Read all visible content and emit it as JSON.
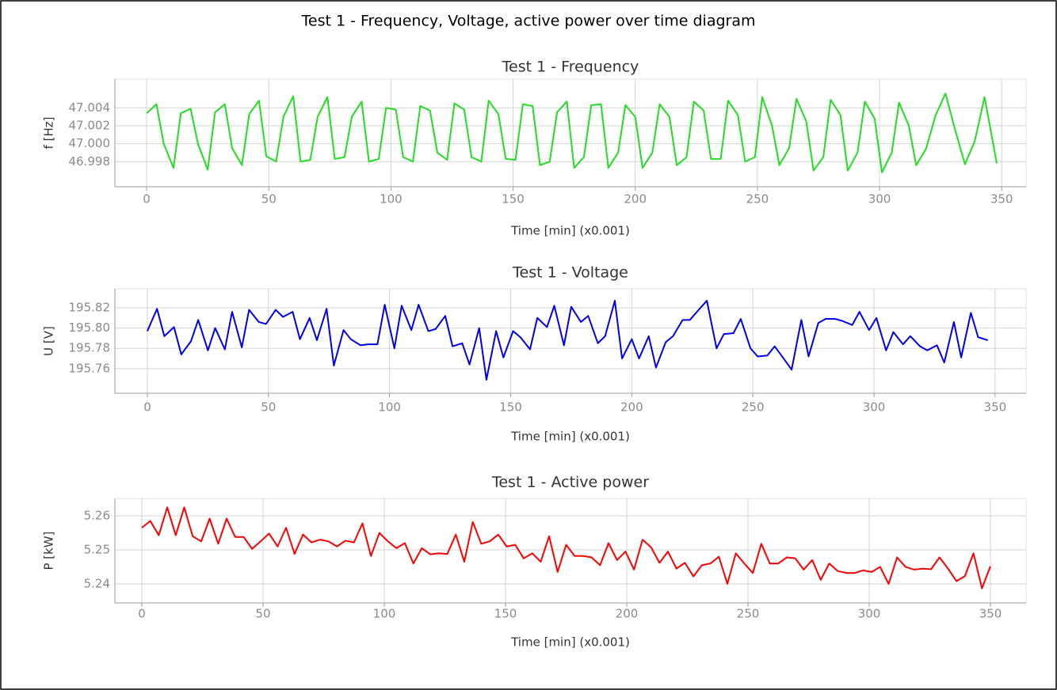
{
  "title": "Test 1 - Frequency, Voltage, active power over time diagram",
  "chart_data": [
    {
      "type": "line",
      "title": "Test 1 - Frequency",
      "x_label": "Time [min] (x0.001)",
      "y_label": "f [Hz]",
      "color": "#22dd22",
      "xlim": [
        -13,
        360
      ],
      "xticks": [
        0,
        50,
        100,
        150,
        200,
        250,
        300,
        350
      ],
      "ylim": [
        46.9952,
        47.0072
      ],
      "yticks": [
        46.998,
        {
          "value": 47,
          "label": "47.000"
        },
        47.002,
        47.004
      ],
      "grid": true,
      "x": [
        0,
        4,
        7,
        11,
        14,
        18,
        21,
        25,
        28,
        32,
        35,
        39,
        42,
        46,
        49,
        53,
        56,
        60,
        63,
        67,
        70,
        74,
        77,
        81,
        84,
        88,
        91,
        95,
        98,
        102,
        105,
        109,
        112,
        116,
        119,
        123,
        126,
        130,
        133,
        137,
        140,
        144,
        147,
        151,
        154,
        158,
        161,
        165,
        168,
        172,
        175,
        179,
        182,
        186,
        189,
        193,
        196,
        200,
        203,
        207,
        210,
        214,
        217,
        221,
        224,
        228,
        231,
        235,
        238,
        242,
        245,
        249,
        252,
        256,
        259,
        263,
        266,
        270,
        273,
        277,
        280,
        284,
        287,
        291,
        294,
        298,
        301,
        305,
        308,
        312,
        315,
        319,
        323,
        327,
        331,
        335,
        339,
        343,
        348
      ],
      "values": [
        47.0034,
        47.0044,
        47.0,
        46.9973,
        47.0034,
        47.0039,
        47.0,
        46.9971,
        47.0035,
        47.0044,
        46.9995,
        46.9976,
        47.0033,
        47.0048,
        46.9986,
        46.998,
        47.003,
        47.0053,
        46.998,
        46.9982,
        47.003,
        47.0052,
        46.9983,
        46.9985,
        47.003,
        47.0047,
        46.998,
        46.9983,
        47.004,
        47.0038,
        46.9985,
        46.998,
        47.0042,
        47.0037,
        46.999,
        46.9982,
        47.0045,
        47.0038,
        46.9985,
        46.998,
        47.0048,
        47.0033,
        46.9983,
        46.9982,
        47.0044,
        47.0042,
        46.9976,
        46.998,
        47.0035,
        47.0047,
        46.9973,
        46.9985,
        47.0043,
        47.0044,
        46.9973,
        46.999,
        47.0043,
        47.003,
        46.9973,
        46.999,
        47.0044,
        47.003,
        46.9976,
        46.9985,
        47.0047,
        47.0037,
        46.9983,
        46.9983,
        47.0048,
        47.0032,
        46.998,
        46.9985,
        47.0052,
        47.002,
        46.9976,
        46.9995,
        47.005,
        47.0025,
        46.997,
        46.9985,
        47.0049,
        47.0032,
        46.997,
        46.999,
        47.0047,
        47.0028,
        46.9968,
        46.999,
        47.0046,
        47.002,
        46.9976,
        46.9994,
        47.0032,
        47.0056,
        47.0015,
        46.9977,
        47.0003,
        47.0052,
        46.9978
      ]
    },
    {
      "type": "line",
      "title": "Test 1 - Voltage",
      "x_label": "Time [min] (x0.001)",
      "y_label": "U [V]",
      "color": "#0000ee",
      "xlim": [
        -13.4,
        362.8
      ],
      "xticks": [
        0,
        50,
        100,
        150,
        200,
        250,
        300,
        350
      ],
      "ylim": [
        195.7357,
        195.8387
      ],
      "yticks": [
        195.76,
        195.78,
        {
          "value": 195.8,
          "label": "195.80"
        },
        195.82
      ],
      "grid": true,
      "x": [
        0,
        4,
        7,
        11,
        14,
        18,
        21,
        25,
        28,
        32,
        35,
        39,
        42,
        46,
        49,
        53,
        56,
        60,
        63,
        67,
        70,
        74,
        77,
        81,
        84,
        88,
        91,
        95,
        98,
        102,
        105,
        109,
        112,
        116,
        119,
        123,
        126,
        130,
        133,
        137,
        140,
        144,
        147,
        151,
        154,
        158,
        161,
        165,
        168,
        172,
        175,
        179,
        182,
        186,
        189,
        193,
        196,
        200,
        203,
        207,
        210,
        214,
        217,
        221,
        224,
        228,
        231,
        235,
        238,
        242,
        245,
        249,
        252,
        256,
        259,
        263,
        266,
        270,
        273,
        277,
        280,
        284,
        287,
        291,
        294,
        298,
        301,
        305,
        308,
        312,
        315,
        319,
        322,
        326,
        329,
        333,
        336,
        340,
        343,
        347
      ],
      "values": [
        195.797,
        195.819,
        195.792,
        195.801,
        195.774,
        195.787,
        195.808,
        195.778,
        195.8,
        195.779,
        195.816,
        195.781,
        195.818,
        195.806,
        195.804,
        195.818,
        195.811,
        195.816,
        195.789,
        195.81,
        195.788,
        195.819,
        195.763,
        195.798,
        195.789,
        195.783,
        195.784,
        195.784,
        195.823,
        195.78,
        195.822,
        195.798,
        195.823,
        195.797,
        195.799,
        195.812,
        195.782,
        195.785,
        195.764,
        195.8,
        195.749,
        195.797,
        195.771,
        195.797,
        195.791,
        195.779,
        195.81,
        195.801,
        195.822,
        195.783,
        195.821,
        195.806,
        195.812,
        195.785,
        195.792,
        195.827,
        195.77,
        195.789,
        195.77,
        195.792,
        195.761,
        195.786,
        195.792,
        195.808,
        195.808,
        195.819,
        195.827,
        195.78,
        195.794,
        195.795,
        195.809,
        195.78,
        195.772,
        195.773,
        195.782,
        195.769,
        195.759,
        195.808,
        195.772,
        195.805,
        195.809,
        195.809,
        195.807,
        195.803,
        195.816,
        195.798,
        195.81,
        195.778,
        195.796,
        195.784,
        195.792,
        195.782,
        195.778,
        195.783,
        195.766,
        195.806,
        195.771,
        195.815,
        195.791,
        195.788
      ]
    },
    {
      "type": "line",
      "title": "Test 1 - Active power",
      "x_label": "Time [min] (x0.001)",
      "y_label": "P [kW]",
      "color": "#ff0000",
      "xlim": [
        -11.1,
        364.7
      ],
      "xticks": [
        0,
        50,
        100,
        150,
        200,
        250,
        300,
        350
      ],
      "ylim": [
        5.2344,
        5.2651
      ],
      "yticks": [
        5.24,
        5.25,
        5.26
      ],
      "grid": true,
      "x": [
        0,
        3.5,
        7,
        10.5,
        14,
        17.5,
        21,
        24.5,
        28,
        31.5,
        35,
        38.5,
        42,
        45.5,
        49,
        52.5,
        56,
        59.5,
        63,
        66.5,
        70,
        73.5,
        77,
        80.5,
        84,
        87.5,
        91,
        94.5,
        98,
        101.5,
        105,
        108.5,
        112,
        115.5,
        119,
        122.5,
        126,
        129.5,
        133,
        136.5,
        140,
        143.5,
        147,
        150.5,
        154,
        157.5,
        161,
        164.5,
        168,
        171.5,
        175,
        178.5,
        182,
        185.5,
        189,
        192.5,
        196,
        199.5,
        203,
        206.5,
        210,
        213.5,
        217,
        220.5,
        224,
        227.5,
        231,
        234.5,
        238,
        241.5,
        245,
        248.5,
        252,
        255.5,
        259,
        262.5,
        266,
        269.5,
        273,
        276.5,
        280,
        283.5,
        287,
        290.5,
        294,
        297.5,
        301,
        304.5,
        308,
        311.5,
        315,
        318.5,
        322,
        325.5,
        329,
        332.5,
        336,
        339.5,
        343,
        346.5,
        350
      ],
      "values": [
        5.2565,
        5.2585,
        5.2543,
        5.2625,
        5.2543,
        5.2625,
        5.254,
        5.2525,
        5.2592,
        5.2518,
        5.2592,
        5.2538,
        5.2538,
        5.2503,
        5.2525,
        5.2548,
        5.251,
        5.2565,
        5.2488,
        5.2545,
        5.2522,
        5.253,
        5.2525,
        5.251,
        5.2527,
        5.2522,
        5.2578,
        5.2482,
        5.255,
        5.2525,
        5.2505,
        5.252,
        5.246,
        5.2505,
        5.2487,
        5.249,
        5.2488,
        5.2545,
        5.2465,
        5.2582,
        5.2518,
        5.2525,
        5.2545,
        5.251,
        5.2515,
        5.2475,
        5.249,
        5.2465,
        5.254,
        5.2435,
        5.2515,
        5.2482,
        5.2482,
        5.2478,
        5.2455,
        5.252,
        5.247,
        5.2495,
        5.2442,
        5.253,
        5.2508,
        5.2462,
        5.2495,
        5.2445,
        5.2462,
        5.2422,
        5.2455,
        5.246,
        5.248,
        5.24,
        5.249,
        5.246,
        5.2432,
        5.2518,
        5.246,
        5.246,
        5.2478,
        5.2475,
        5.2442,
        5.247,
        5.2412,
        5.246,
        5.2438,
        5.2432,
        5.2432,
        5.244,
        5.2435,
        5.245,
        5.24,
        5.2478,
        5.245,
        5.2442,
        5.2445,
        5.2443,
        5.2478,
        5.2445,
        5.2408,
        5.2423,
        5.249,
        5.2387,
        5.2452
      ]
    }
  ]
}
